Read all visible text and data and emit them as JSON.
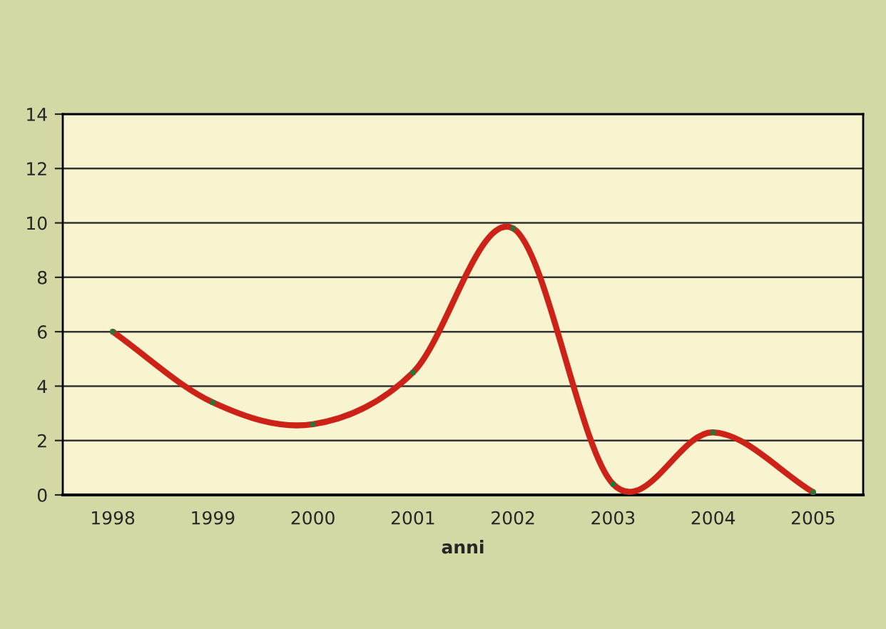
{
  "chart_data": {
    "type": "line",
    "xlabel": "anni",
    "categories": [
      "1998",
      "1999",
      "2000",
      "2001",
      "2002",
      "2003",
      "2004",
      "2005"
    ],
    "series": [
      {
        "color": "#cc2218",
        "colors": [
          "#1f7a3a",
          "#1f7a3a",
          "#1f7a3a",
          "#1f7a3a",
          "#1f7a3a",
          "#1f7a3a",
          "#1f7a3a",
          "#1f7a3a"
        ],
        "values": [
          6.0,
          3.4,
          2.6,
          4.5,
          9.8,
          0.4,
          2.3,
          0.1
        ]
      }
    ],
    "ylim": [
      0,
      14
    ],
    "yticks": [
      0,
      2,
      4,
      6,
      8,
      10,
      12,
      14
    ],
    "grid": "y",
    "marker": "square",
    "line_style": "solid",
    "legend": false
  }
}
